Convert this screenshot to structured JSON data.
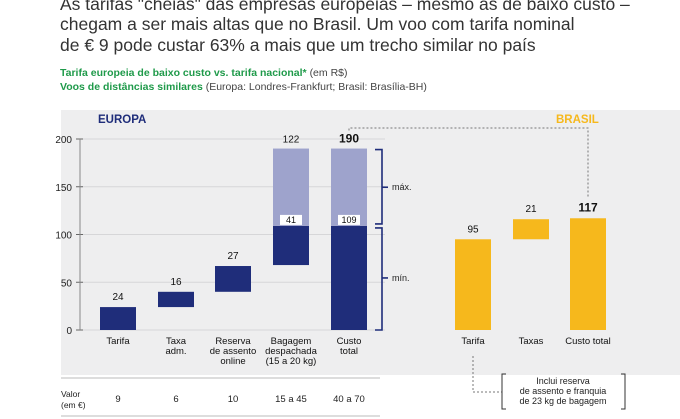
{
  "headline": {
    "line1": "As tarifas \"cheias\" das empresas europeias – mesmo as de baixo custo –",
    "line2": "chegam a ser mais altas que no Brasil. Um voo com tarifa nominal",
    "line3": "de € 9 pode custar 63% a mais que um trecho similar no país"
  },
  "subtitle": {
    "line1_bold": "Tarifa europeia de baixo custo vs. tarifa nacional*",
    "line1_note": "(em R$)",
    "line2_bold": "Voos de distâncias similares",
    "line2_note": "(Europa: Londres-Frankfurt; Brasil: Brasília-BH)"
  },
  "chart_data": {
    "type": "bar",
    "subtype": "waterfall",
    "ylim": [
      0,
      200
    ],
    "yticks": [
      0,
      50,
      100,
      150,
      200
    ],
    "grid": true,
    "groups": [
      {
        "name": "EUROPA",
        "color": "#1f2d7a",
        "bars": [
          {
            "label": [
              "Tarifa"
            ],
            "base": 0,
            "value": 24,
            "label_value": "24"
          },
          {
            "label": [
              "Taxa",
              "adm."
            ],
            "base": 24,
            "value": 16,
            "label_value": "16"
          },
          {
            "label": [
              "Reserva",
              "de assento",
              "online"
            ],
            "base": 40,
            "value": 27,
            "label_value": "27"
          },
          {
            "label": [
              "Bagagem",
              "despachada",
              "(15 a 20 kg)"
            ],
            "base": 68,
            "value": 41,
            "label_value": "41",
            "extension": 81,
            "extension_color": "#9ea3cc",
            "total_label": "122"
          },
          {
            "label": [
              "Custo",
              "total"
            ],
            "base": 0,
            "value": 109,
            "label_value": "109",
            "extension": 81,
            "extension_color": "#9ea3cc",
            "total_label": "190"
          }
        ]
      },
      {
        "name": "BRASIL",
        "color": "#f6b81c",
        "bars": [
          {
            "label": [
              "Tarifa"
            ],
            "base": 0,
            "value": 95,
            "label_value": "95"
          },
          {
            "label": [
              "Taxas"
            ],
            "base": 95,
            "value": 21,
            "label_value": "21"
          },
          {
            "label": [
              "Custo total"
            ],
            "base": 0,
            "value": 117,
            "label_value": "117"
          }
        ]
      }
    ],
    "range_labels": {
      "max": "máx.",
      "min": "mín."
    },
    "annotation": [
      "Inclui reserva",
      "de assento e franquia",
      "de 23 kg de bagagem"
    ],
    "valor_row": {
      "label": [
        "Valor",
        "(em €)"
      ],
      "values": [
        "9",
        "6",
        "10",
        "15 a 45",
        "40 a 70"
      ]
    }
  }
}
